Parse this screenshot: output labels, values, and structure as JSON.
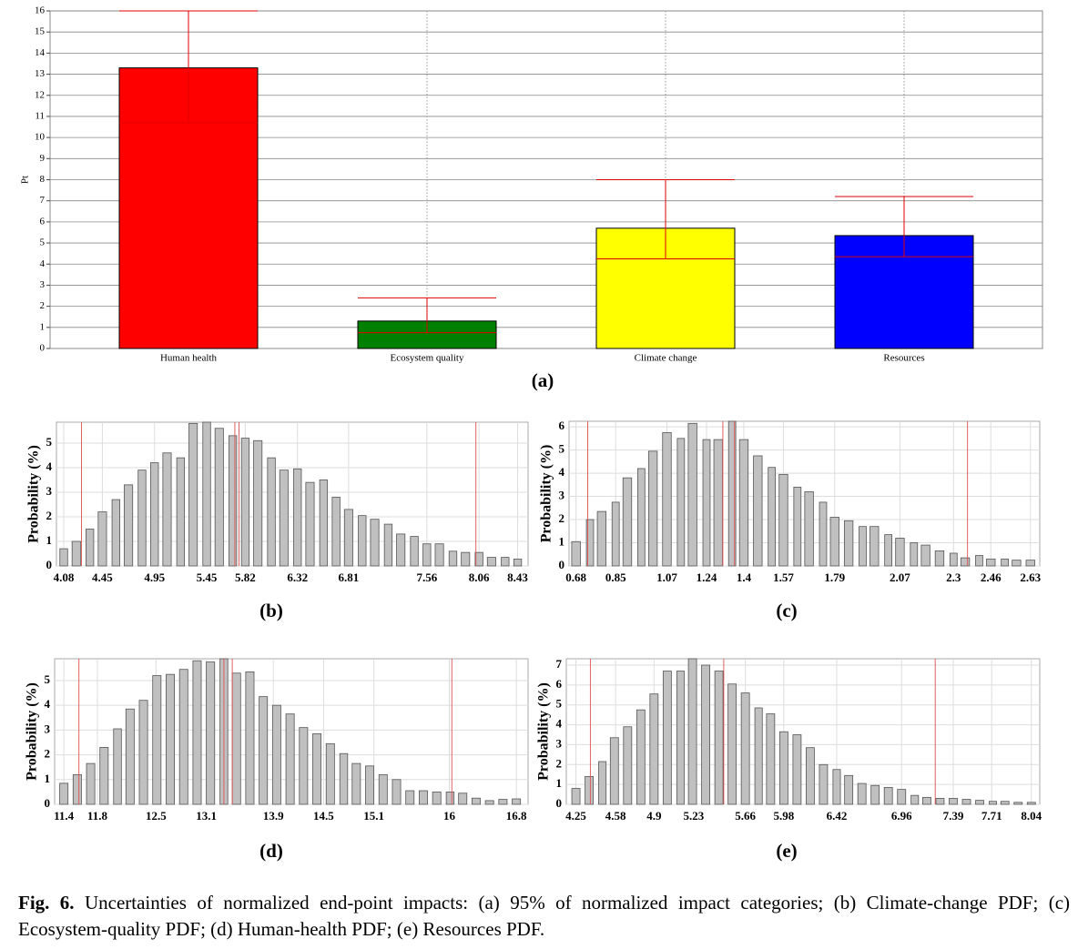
{
  "chart_data": [
    {
      "type": "bar",
      "panel": "(a)",
      "y_label": "Pt",
      "categories": [
        "Human health",
        "Ecosystem quality",
        "Climate change",
        "Resources"
      ],
      "values": [
        13.3,
        1.3,
        5.7,
        5.35
      ],
      "lower": [
        10.7,
        0.75,
        4.25,
        4.35
      ],
      "upper": [
        16,
        2.4,
        8.0,
        7.2
      ],
      "colors": [
        "#ff0000",
        "#008000",
        "#ffff00",
        "#0000ff"
      ],
      "error_color": "#e00000",
      "ylim": [
        0,
        16
      ],
      "yticks": [
        0,
        1,
        2,
        3,
        4,
        5,
        6,
        7,
        8,
        9,
        10,
        11,
        12,
        13,
        14,
        15,
        16
      ],
      "grid": true
    },
    {
      "type": "histogram",
      "panel": "(b)",
      "y_label": "Probability (%)",
      "color": "#c0c0c0",
      "marker_color": "#e05050",
      "x": [
        4.08,
        4.2,
        4.33,
        4.45,
        4.58,
        4.7,
        4.83,
        4.95,
        5.07,
        5.2,
        5.32,
        5.45,
        5.57,
        5.7,
        5.82,
        5.94,
        6.07,
        6.19,
        6.32,
        6.44,
        6.57,
        6.69,
        6.81,
        6.94,
        7.06,
        7.19,
        7.31,
        7.44,
        7.56,
        7.68,
        7.81,
        7.93,
        8.06,
        8.18,
        8.31,
        8.43
      ],
      "values": [
        0.7,
        1.0,
        1.5,
        2.2,
        2.7,
        3.3,
        3.9,
        4.2,
        4.6,
        4.4,
        5.8,
        5.85,
        5.6,
        5.3,
        5.2,
        5.1,
        4.4,
        3.9,
        3.95,
        3.4,
        3.5,
        2.8,
        2.3,
        2.05,
        1.9,
        1.7,
        1.3,
        1.2,
        0.9,
        0.9,
        0.6,
        0.55,
        0.55,
        0.35,
        0.35,
        0.28
      ],
      "markers": [
        4.25,
        5.72,
        5.76,
        8.03
      ],
      "xlim": [
        4.01,
        8.53
      ],
      "xticks": [
        4.08,
        4.45,
        4.95,
        5.45,
        5.82,
        6.32,
        6.81,
        7.56,
        8.06,
        8.43
      ],
      "ylim": [
        0,
        5.85
      ],
      "yticks": [
        0,
        1,
        2,
        3,
        4,
        5
      ],
      "grid": true
    },
    {
      "type": "histogram",
      "panel": "(c)",
      "y_label": "Probability (%)",
      "color": "#c0c0c0",
      "marker_color": "#e05050",
      "x": [
        0.68,
        0.74,
        0.79,
        0.85,
        0.9,
        0.96,
        1.01,
        1.07,
        1.13,
        1.18,
        1.24,
        1.29,
        1.35,
        1.4,
        1.46,
        1.52,
        1.57,
        1.63,
        1.68,
        1.74,
        1.79,
        1.85,
        1.91,
        1.96,
        2.02,
        2.07,
        2.13,
        2.18,
        2.24,
        2.3,
        2.35,
        2.41,
        2.46,
        2.52,
        2.57,
        2.63
      ],
      "values": [
        1.05,
        2.0,
        2.35,
        2.75,
        3.8,
        4.2,
        4.95,
        5.75,
        5.5,
        6.15,
        5.45,
        5.45,
        6.24,
        5.45,
        4.75,
        4.25,
        3.95,
        3.4,
        3.2,
        2.75,
        2.1,
        1.95,
        1.7,
        1.7,
        1.35,
        1.2,
        1.0,
        0.9,
        0.65,
        0.55,
        0.35,
        0.45,
        0.3,
        0.3,
        0.25,
        0.25
      ],
      "markers": [
        0.73,
        1.31,
        1.36,
        2.36
      ],
      "xlim": [
        0.65,
        2.67
      ],
      "xticks": [
        0.68,
        0.85,
        1.07,
        1.24,
        1.4,
        1.57,
        1.79,
        2.07,
        2.3,
        2.46,
        2.63
      ],
      "ylim": [
        0,
        6.24
      ],
      "yticks": [
        0,
        1,
        2,
        3,
        4,
        5,
        6
      ],
      "grid": true
    },
    {
      "type": "histogram",
      "panel": "(d)",
      "y_label": "Probability (%)",
      "color": "#c0c0c0",
      "marker_color": "#e05050",
      "x": [
        11.4,
        11.56,
        11.72,
        11.88,
        12.04,
        12.19,
        12.35,
        12.51,
        12.67,
        12.83,
        12.99,
        13.15,
        13.31,
        13.46,
        13.62,
        13.78,
        13.94,
        14.1,
        14.26,
        14.42,
        14.58,
        14.74,
        14.89,
        15.05,
        15.21,
        15.37,
        15.53,
        15.69,
        15.85,
        16.01,
        16.16,
        16.32,
        16.48,
        16.64,
        16.8
      ],
      "values": [
        0.85,
        1.2,
        1.65,
        2.3,
        3.05,
        3.85,
        4.2,
        5.2,
        5.25,
        5.45,
        5.8,
        5.75,
        5.88,
        5.3,
        5.35,
        4.35,
        4.0,
        3.65,
        3.1,
        2.85,
        2.45,
        2.05,
        1.65,
        1.55,
        1.2,
        1.0,
        0.55,
        0.55,
        0.5,
        0.5,
        0.45,
        0.25,
        0.15,
        0.2,
        0.22
      ],
      "markers": [
        11.58,
        13.31,
        13.41,
        16.03
      ],
      "xlim": [
        11.29,
        16.94
      ],
      "xticks": [
        11.4,
        11.8,
        12.5,
        13.1,
        13.9,
        14.5,
        15.1,
        16,
        16.8
      ],
      "ylim": [
        0,
        5.88
      ],
      "yticks": [
        0,
        1,
        2,
        3,
        4,
        5
      ],
      "grid": true
    },
    {
      "type": "histogram",
      "panel": "(e)",
      "y_label": "Probability (%)",
      "color": "#c0c0c0",
      "marker_color": "#e05050",
      "x": [
        4.25,
        4.36,
        4.47,
        4.57,
        4.68,
        4.79,
        4.9,
        5.01,
        5.12,
        5.22,
        5.33,
        5.44,
        5.55,
        5.66,
        5.77,
        5.87,
        5.98,
        6.09,
        6.2,
        6.31,
        6.42,
        6.52,
        6.63,
        6.74,
        6.85,
        6.96,
        7.07,
        7.17,
        7.28,
        7.39,
        7.5,
        7.61,
        7.72,
        7.82,
        7.93,
        8.04
      ],
      "values": [
        0.8,
        1.4,
        2.15,
        3.35,
        3.9,
        4.75,
        5.55,
        6.7,
        6.7,
        7.32,
        7.0,
        6.7,
        6.05,
        5.6,
        4.85,
        4.55,
        3.65,
        3.5,
        2.85,
        2.0,
        1.75,
        1.45,
        1.05,
        0.95,
        0.85,
        0.75,
        0.45,
        0.35,
        0.3,
        0.3,
        0.25,
        0.2,
        0.15,
        0.15,
        0.1,
        0.1
      ],
      "markers": [
        4.37,
        5.48,
        7.24
      ],
      "xlim": [
        4.17,
        8.11
      ],
      "xticks": [
        4.25,
        4.58,
        4.9,
        5.23,
        5.66,
        5.98,
        6.42,
        6.96,
        7.39,
        7.71,
        8.04
      ],
      "ylim": [
        0,
        7.32
      ],
      "yticks": [
        0,
        1,
        2,
        3,
        4,
        5,
        6,
        7
      ],
      "grid": true
    }
  ],
  "caption": {
    "label": "Fig. 6.",
    "text": "Uncertainties of normalized end-point impacts: (a) 95% of normalized impact categories; (b) Climate-change PDF; (c) Ecosystem-quality PDF; (d) Human-health PDF; (e) Resources PDF."
  }
}
